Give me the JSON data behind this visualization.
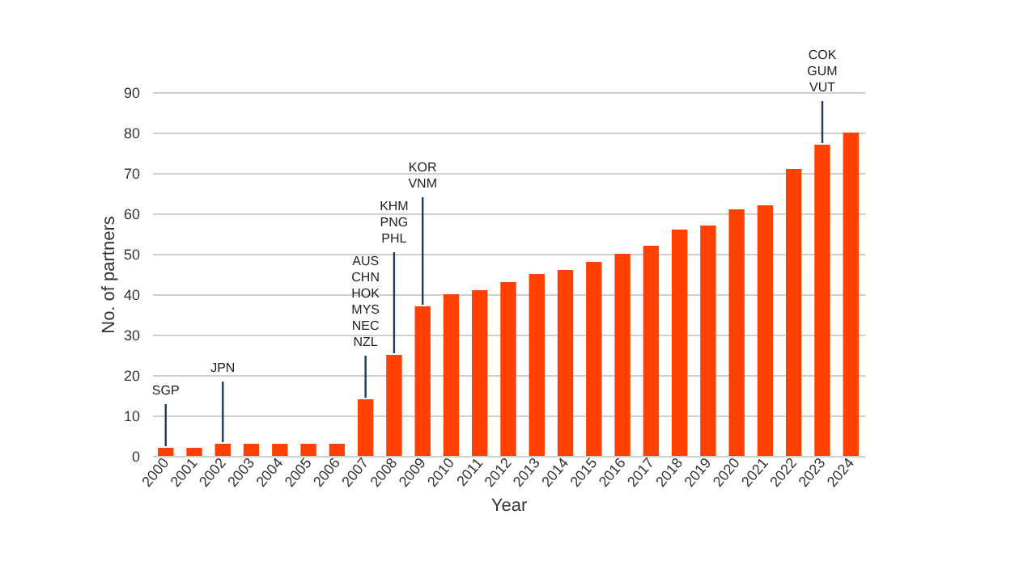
{
  "chart_data": {
    "type": "bar",
    "xlabel": "Year",
    "ylabel": "No. of partners",
    "categories": [
      "2000",
      "2001",
      "2002",
      "2003",
      "2004",
      "2005",
      "2006",
      "2007",
      "2008",
      "2009",
      "2010",
      "2011",
      "2012",
      "2013",
      "2014",
      "2015",
      "2016",
      "2017",
      "2018",
      "2019",
      "2020",
      "2021",
      "2022",
      "2023",
      "2024"
    ],
    "values": [
      2,
      2,
      3,
      3,
      3,
      3,
      3,
      14,
      25,
      37,
      40,
      41,
      43,
      45,
      46,
      48,
      50,
      52,
      56,
      57,
      61,
      62,
      71,
      77,
      80
    ],
    "color": "#ff4000",
    "ylim": [
      0,
      90
    ],
    "yticks": [
      0,
      10,
      20,
      30,
      40,
      50,
      60,
      70,
      80,
      90
    ],
    "grid": "y",
    "annotations": [
      {
        "text": "SGP",
        "x": "2000",
        "y": 2
      },
      {
        "text": "JPN",
        "x": "2002",
        "y": 3
      },
      {
        "text": "AUS\nCHN\nHOK\nMYS\nNEC\nNZL",
        "x": "2007",
        "y": 14
      },
      {
        "text": "KHM\nPNG\nPHL",
        "x": "2008",
        "y": 25
      },
      {
        "text": "KOR\nVNM",
        "x": "2009",
        "y": 37
      },
      {
        "text": "COK\nGUM\nVUT",
        "x": "2023",
        "y": 77
      }
    ]
  }
}
